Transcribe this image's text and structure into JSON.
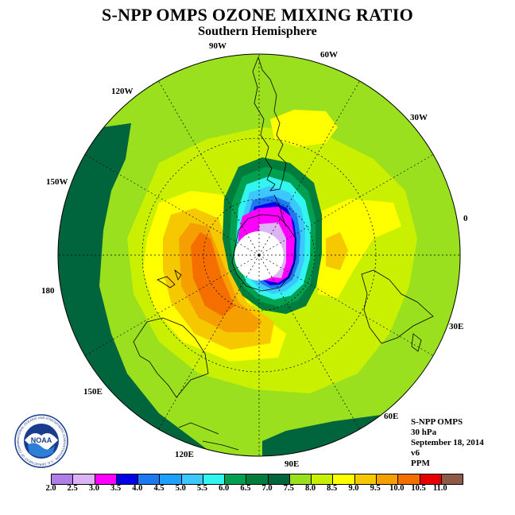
{
  "title": "S-NPP OMPS OZONE MIXING RATIO",
  "subtitle": "Southern Hemisphere",
  "longitude_labels": [
    "90W",
    "60W",
    "30W",
    "0",
    "30E",
    "60E",
    "90E",
    "120E",
    "150E",
    "180",
    "150W",
    "120W"
  ],
  "info": {
    "instrument": "S-NPP OMPS",
    "level": "30 hPa",
    "date": "September 18, 2014",
    "version": "v6",
    "units": "PPM"
  },
  "logo": {
    "name": "NOAA",
    "ring_text": "NATIONAL OCEANIC AND ATMOSPHERIC ADMINISTRATION · U.S. DEPARTMENT OF COMMERCE"
  },
  "colorbar": {
    "ticks": [
      "2.0",
      "2.5",
      "3.0",
      "3.5",
      "4.0",
      "4.5",
      "5.0",
      "5.5",
      "6.0",
      "6.5",
      "7.0",
      "7.5",
      "8.0",
      "8.5",
      "9.0",
      "9.5",
      "10.0",
      "10.5",
      "11.0"
    ],
    "colors": [
      "#b07ee8",
      "#dcb4f5",
      "#ff00ff",
      "#0000e6",
      "#1e78f0",
      "#1ea0ff",
      "#3cc8ff",
      "#32f5f0",
      "#00a050",
      "#007d3c",
      "#00643c",
      "#9be01e",
      "#c8f000",
      "#ffff00",
      "#f5c800",
      "#f5a000",
      "#f56e00",
      "#e60000",
      "#8c5a46"
    ]
  },
  "map_colors": {
    "ring": "#9be01e",
    "dark_band": "#00643c",
    "yellow_green": "#c8f000",
    "yellow": "#ffff00",
    "gold": "#f5c800",
    "orange": "#f5a000",
    "dark_orange": "#f56e00",
    "mid_green": "#007d3c",
    "green": "#00a050",
    "cyan": "#32f5f0",
    "sky": "#3cc8ff",
    "blue": "#1e78f0",
    "navy": "#0000e6",
    "magenta": "#ff00ff",
    "lilac": "#dcb4f5",
    "pole": "#ffffff"
  }
}
